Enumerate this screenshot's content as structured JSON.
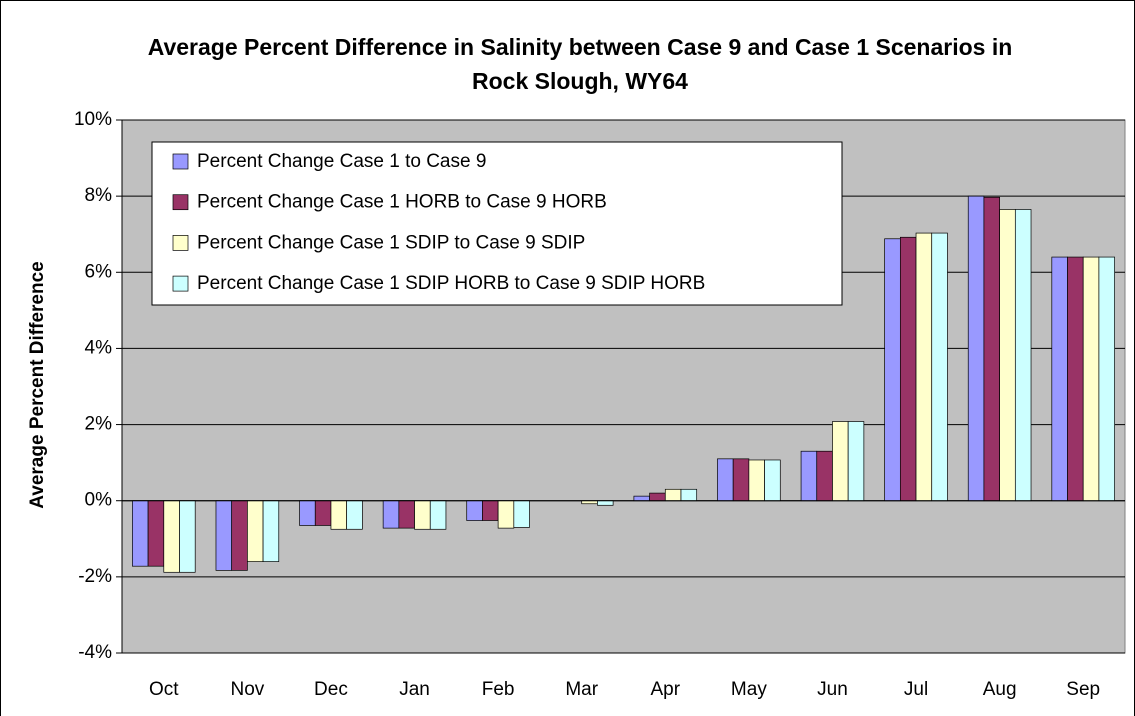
{
  "chart_data": {
    "type": "bar",
    "title": "Average Percent Difference in Salinity between Case 9 and Case 1 Scenarios in Rock Slough, WY64",
    "ylabel": "Average Percent Difference",
    "categories": [
      "Oct",
      "Nov",
      "Dec",
      "Jan",
      "Feb",
      "Mar",
      "Apr",
      "May",
      "Jun",
      "Jul",
      "Aug",
      "Sep"
    ],
    "series": [
      {
        "name": "Percent Change Case 1 to Case 9",
        "color": "#9999ff",
        "values": [
          -1.72,
          -1.83,
          -0.65,
          -0.72,
          -0.52,
          0,
          0.12,
          1.1,
          1.3,
          6.88,
          8.0,
          6.4
        ]
      },
      {
        "name": "Percent Change Case 1 HORB to Case 9 HORB",
        "color": "#993366",
        "values": [
          -1.72,
          -1.83,
          -0.65,
          -0.72,
          -0.52,
          0,
          0.2,
          1.1,
          1.3,
          6.92,
          7.97,
          6.4
        ]
      },
      {
        "name": "Percent Change Case 1 SDIP to Case 9 SDIP",
        "color": "#ffffcc",
        "values": [
          -1.88,
          -1.6,
          -0.75,
          -0.75,
          -0.72,
          -0.08,
          0.3,
          1.07,
          2.08,
          7.03,
          7.65,
          6.4
        ]
      },
      {
        "name": "Percent Change Case 1 SDIP HORB to Case 9 SDIP HORB",
        "color": "#ccffff",
        "values": [
          -1.88,
          -1.6,
          -0.75,
          -0.75,
          -0.7,
          -0.12,
          0.3,
          1.07,
          2.08,
          7.03,
          7.65,
          6.4
        ]
      }
    ],
    "ylim": [
      -4,
      10
    ],
    "yticks": [
      {
        "value": -4,
        "label": "-4%"
      },
      {
        "value": -2,
        "label": "-2%"
      },
      {
        "value": 0,
        "label": "0%"
      },
      {
        "value": 2,
        "label": "2%"
      },
      {
        "value": 4,
        "label": "4%"
      },
      {
        "value": 6,
        "label": "6%"
      },
      {
        "value": 8,
        "label": "8%"
      },
      {
        "value": 10,
        "label": "10%"
      }
    ],
    "grid": true,
    "legend": "upper-left"
  }
}
